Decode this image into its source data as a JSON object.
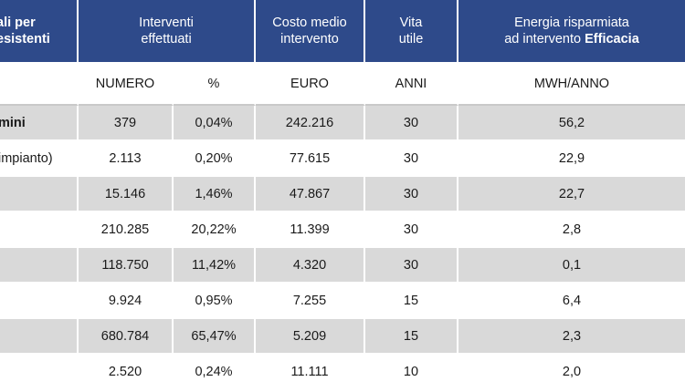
{
  "header": {
    "col0": "ali per\nesistenti",
    "col0_line1": "ali per",
    "col0_line2": "esistenti",
    "interventi_line1": "Interventi",
    "interventi_line2": "effettuati",
    "costo_line1": "Costo medio",
    "costo_line2": "intervento",
    "vita_line1": "Vita",
    "vita_line2": "utile",
    "energia_line1": "Energia risparmiata",
    "energia_line2_prefix": "ad intervento ",
    "energia_line2_bold": "Efficacia"
  },
  "units": {
    "numero": "NUMERO",
    "percent": "%",
    "euro": "EURO",
    "anni": "ANNI",
    "mwh": "MWH/ANNO"
  },
  "rows": [
    {
      "label": "mini",
      "numero": "379",
      "percent": "0,04%",
      "costo": "242.216",
      "vita": "30",
      "energia": "56,2"
    },
    {
      "label": "impianto)",
      "numero": "2.113",
      "percent": "0,20%",
      "costo": "77.615",
      "vita": "30",
      "energia": "22,9"
    },
    {
      "label": "",
      "numero": "15.146",
      "percent": "1,46%",
      "costo": "47.867",
      "vita": "30",
      "energia": "22,7"
    },
    {
      "label": "",
      "numero": "210.285",
      "percent": "20,22%",
      "costo": "11.399",
      "vita": "30",
      "energia": "2,8"
    },
    {
      "label": "",
      "numero": "118.750",
      "percent": "11,42%",
      "costo": "4.320",
      "vita": "30",
      "energia": "0,1"
    },
    {
      "label": "",
      "numero": "9.924",
      "percent": "0,95%",
      "costo": "7.255",
      "vita": "15",
      "energia": "6,4"
    },
    {
      "label": "",
      "numero": "680.784",
      "percent": "65,47%",
      "costo": "5.209",
      "vita": "15",
      "energia": "2,3"
    },
    {
      "label": "",
      "numero": "2.520",
      "percent": "0,24%",
      "costo": "11.111",
      "vita": "10",
      "energia": "2,0"
    }
  ],
  "colors": {
    "header_bg": "#2e4a8a",
    "row_shade": "#d9d9d9"
  }
}
